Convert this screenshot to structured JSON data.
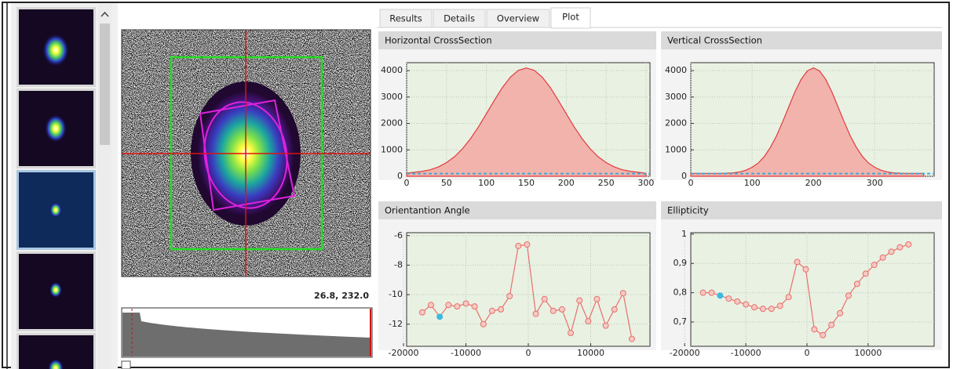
{
  "tabs": [
    "Results",
    "Details",
    "Overview",
    "Plot"
  ],
  "coordinates": "26.8, 232.0",
  "chart_data": [
    {
      "type": "area",
      "title": "Horizontal CrossSection",
      "x": [
        0,
        10,
        20,
        30,
        40,
        50,
        60,
        70,
        80,
        90,
        100,
        110,
        120,
        130,
        140,
        150,
        160,
        170,
        180,
        190,
        200,
        210,
        220,
        230,
        240,
        250,
        260,
        270,
        280,
        290,
        300
      ],
      "values": [
        120,
        150,
        190,
        250,
        360,
        520,
        740,
        1040,
        1420,
        1870,
        2370,
        2880,
        3360,
        3750,
        4010,
        4100,
        4010,
        3750,
        3360,
        2880,
        2370,
        1870,
        1420,
        1040,
        740,
        520,
        360,
        250,
        190,
        150,
        120
      ],
      "xlim": [
        0,
        305
      ],
      "ylim": [
        0,
        4300
      ],
      "xticks": [
        0,
        50,
        100,
        150,
        200,
        250,
        300
      ],
      "yticks": [
        0,
        1000,
        2000,
        3000,
        4000
      ],
      "color": "#e03c3c",
      "fill": "#f2b3ad",
      "baseline": 100,
      "baseline_color": "#3fa9d6",
      "grid": true
    },
    {
      "type": "area",
      "title": "Vertical CrossSection",
      "x": [
        0,
        10,
        20,
        30,
        40,
        50,
        60,
        70,
        80,
        90,
        100,
        110,
        120,
        130,
        140,
        150,
        160,
        170,
        180,
        190,
        200,
        210,
        220,
        230,
        240,
        250,
        260,
        270,
        280,
        290,
        300,
        310,
        320,
        330,
        340,
        350,
        360,
        370,
        380
      ],
      "values": [
        110,
        110,
        110,
        110,
        110,
        110,
        120,
        130,
        170,
        230,
        340,
        500,
        750,
        1100,
        1540,
        2070,
        2640,
        3200,
        3670,
        3990,
        4100,
        3990,
        3670,
        3200,
        2640,
        2070,
        1540,
        1100,
        750,
        500,
        340,
        230,
        170,
        130,
        120,
        110,
        110,
        110,
        110
      ],
      "xlim": [
        0,
        397
      ],
      "ylim": [
        0,
        4300
      ],
      "xticks": [
        0,
        100,
        200,
        300
      ],
      "yticks": [
        0,
        1000,
        2000,
        3000,
        4000
      ],
      "color": "#e03c3c",
      "fill": "#f2b3ad",
      "baseline": 100,
      "baseline_color": "#3fa9d6",
      "grid": true
    },
    {
      "type": "line",
      "title": "Orientantion Angle",
      "x": [
        -17000,
        -15600,
        -14200,
        -12800,
        -11400,
        -10000,
        -8600,
        -7200,
        -5800,
        -4400,
        -3000,
        -1600,
        -200,
        1200,
        2600,
        4000,
        5400,
        6800,
        8200,
        9600,
        11000,
        12400,
        13800,
        15200,
        16600
      ],
      "values": [
        -11.2,
        -10.7,
        -11.5,
        -10.7,
        -10.8,
        -10.6,
        -10.8,
        -12.0,
        -11.1,
        -11.0,
        -10.1,
        -6.7,
        -6.6,
        -11.3,
        -10.3,
        -11.1,
        -11.0,
        -12.6,
        -10.4,
        -11.8,
        -10.3,
        -12.1,
        -11.0,
        -9.9,
        -13.0
      ],
      "xlim": [
        -19500,
        19500
      ],
      "ylim": [
        -13.5,
        -5.8
      ],
      "xticks": [
        -20000,
        -10000,
        0,
        10000
      ],
      "yticks": [
        -6,
        -8,
        -10,
        -12
      ],
      "color": "#e8706a",
      "highlight": 2,
      "highlight_color": "#3fb8e0",
      "grid": true
    },
    {
      "type": "line",
      "title": "Ellipticity",
      "x": [
        -17000,
        -15600,
        -14200,
        -12800,
        -11400,
        -10000,
        -8600,
        -7200,
        -5800,
        -4400,
        -3000,
        -1600,
        -200,
        1200,
        2600,
        4000,
        5400,
        6800,
        8200,
        9600,
        11000,
        12400,
        13800,
        15200,
        16600
      ],
      "values": [
        0.8,
        0.8,
        0.79,
        0.78,
        0.77,
        0.76,
        0.75,
        0.745,
        0.745,
        0.755,
        0.785,
        0.905,
        0.88,
        0.675,
        0.655,
        0.69,
        0.73,
        0.79,
        0.83,
        0.865,
        0.895,
        0.92,
        0.94,
        0.955,
        0.965
      ],
      "xlim": [
        -19000,
        20800
      ],
      "ylim": [
        0.617,
        1.005
      ],
      "xticks": [
        -20000,
        -10000,
        0,
        10000
      ],
      "yticks": [
        1,
        {
          "value": 0.9,
          "label": "0,9"
        },
        {
          "value": 0.8,
          "label": "0,8"
        },
        {
          "value": 0.7,
          "label": "0,7"
        }
      ],
      "color": "#e8706a",
      "highlight": 2,
      "highlight_color": "#3fb8e0",
      "grid": true
    }
  ]
}
